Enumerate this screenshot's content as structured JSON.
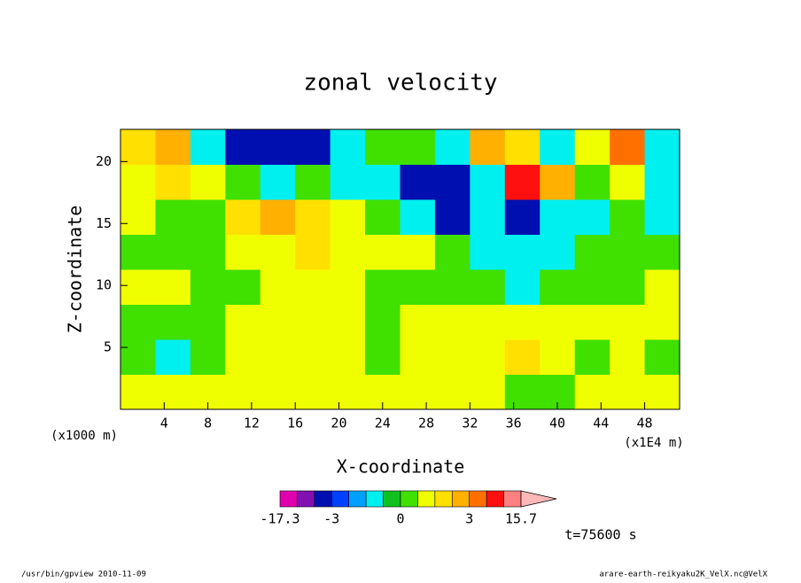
{
  "chart_data": {
    "type": "contourf",
    "title": "zonal velocity",
    "xlabel": "X-coordinate",
    "ylabel": "Z-coordinate",
    "x_unit": "(x1000 m)",
    "x_scale": "(x1E4 m)",
    "annotation": "t=75600 s",
    "footer_left": "/usr/bin/gpview  2010-11-09",
    "footer_right": "arare-earth-reikyaku2K_VelX.nc@VelX",
    "xbins": [
      0,
      3.2,
      6.4,
      9.6,
      12.8,
      16,
      19.2,
      22.4,
      25.6,
      28.8,
      32,
      35.2,
      38.4,
      41.6,
      44.8,
      48,
      51.2
    ],
    "ybins": [
      0,
      2.825,
      5.65,
      8.475,
      11.3,
      14.125,
      16.95,
      19.775,
      22.6
    ],
    "z": [
      [
        0.7,
        0.7,
        0.7,
        0.7,
        0.7,
        0.7,
        0.7,
        0.5,
        0.7,
        0.7,
        0.7,
        0.2,
        0.2,
        0.7,
        0.7,
        0.7
      ],
      [
        0.2,
        -0.7,
        0.2,
        0.7,
        0.7,
        0.7,
        0.7,
        0.2,
        0.7,
        0.7,
        0.7,
        1.5,
        0.7,
        0.2,
        0.7,
        0.2
      ],
      [
        0.2,
        0.2,
        0.2,
        0.7,
        0.7,
        0.7,
        0.7,
        0.2,
        0.7,
        0.7,
        0.7,
        0.7,
        0.7,
        0.7,
        0.7,
        0.7
      ],
      [
        0.7,
        0.7,
        0.2,
        0.2,
        0.7,
        0.7,
        0.7,
        0.2,
        0.2,
        0.2,
        0.2,
        -0.7,
        0.2,
        0.2,
        0.2,
        0.7
      ],
      [
        0.2,
        0.2,
        0.2,
        0.7,
        0.7,
        1.5,
        0.7,
        0.7,
        0.7,
        0.2,
        -0.7,
        -0.7,
        -0.7,
        0.2,
        0.2,
        0.2
      ],
      [
        0.7,
        0.2,
        0.2,
        1.5,
        2.5,
        1.5,
        0.7,
        0.2,
        -0.7,
        -3.5,
        -0.7,
        -4,
        -0.7,
        -0.7,
        0.2,
        -0.7
      ],
      [
        0.7,
        1.5,
        0.7,
        0.2,
        -0.7,
        0.2,
        -0.7,
        -0.7,
        -4,
        -4,
        -0.7,
        8,
        2.5,
        0.2,
        0.7,
        -0.7
      ],
      [
        1.5,
        2.5,
        -0.7,
        -4,
        -4,
        -4,
        -0.7,
        0.2,
        0.2,
        -0.7,
        2.5,
        1.5,
        -0.7,
        0.7,
        4,
        -0.7
      ]
    ],
    "xlim": [
      0,
      51.2
    ],
    "ylim": [
      0,
      22.6
    ],
    "xticks": [
      4,
      8,
      12,
      16,
      20,
      24,
      28,
      32,
      36,
      40,
      44,
      48
    ],
    "yticks": [
      5,
      10,
      15,
      20
    ],
    "levels": [
      -17.3,
      -10,
      -6,
      -3,
      -2,
      -1,
      -0.5,
      0,
      0.5,
      1,
      2,
      3,
      6,
      10,
      15.7
    ],
    "colors": [
      "#e000b0",
      "#8010b0",
      "#0010b0",
      "#0040ff",
      "#00a0ff",
      "#00f0f0",
      "#10c020",
      "#40e000",
      "#f0ff00",
      "#ffe000",
      "#ffb000",
      "#ff7000",
      "#ff1010",
      "#ff8080"
    ],
    "over_color": "#ffb8b8",
    "colorbar_ticks": [
      -17.3,
      -3,
      0,
      3,
      15.7
    ]
  }
}
